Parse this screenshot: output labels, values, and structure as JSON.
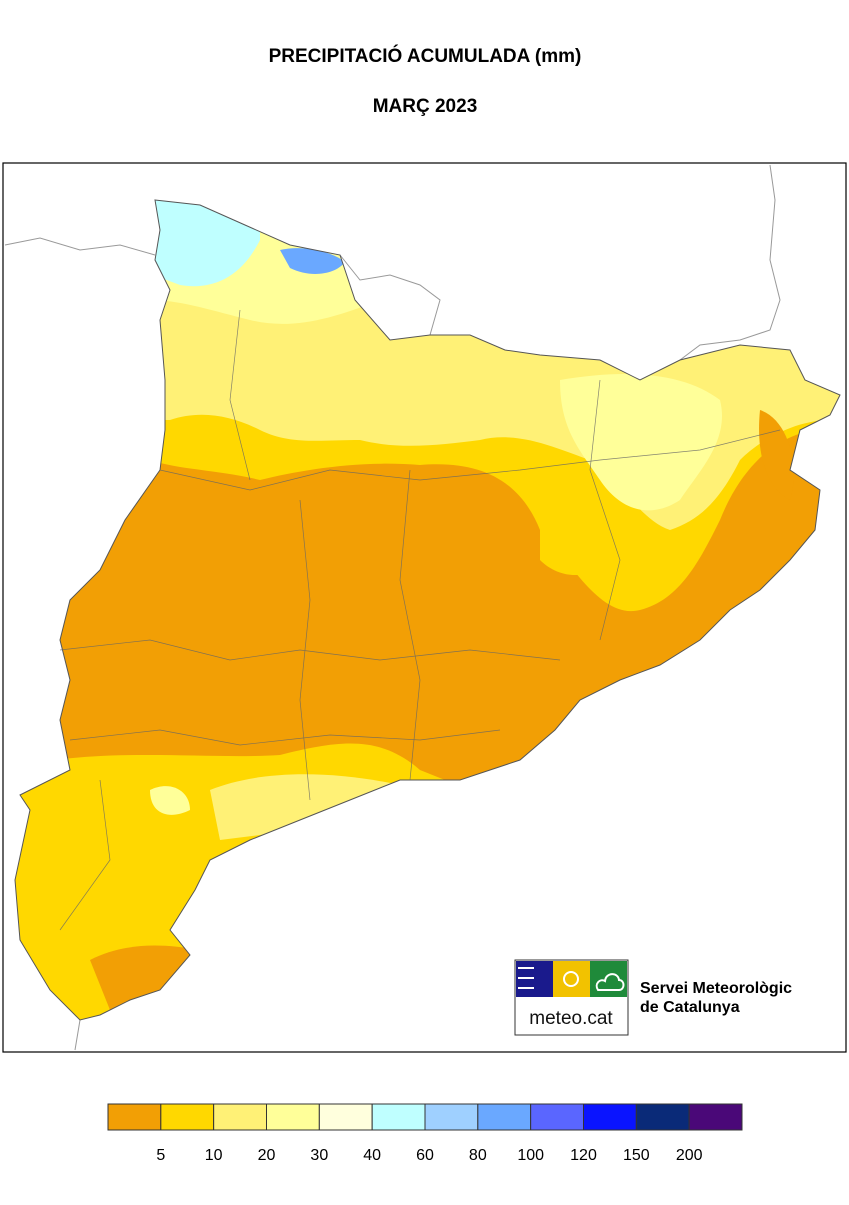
{
  "header": {
    "title": "PRECIPITACIÓ ACUMULADA (mm)",
    "subtitle": "MARÇ 2023"
  },
  "legend": {
    "colors": [
      "#f29f05",
      "#ffd800",
      "#fff176",
      "#ffff99",
      "#ffffdd",
      "#bfffff",
      "#9fd0ff",
      "#6aa8ff",
      "#5a66ff",
      "#0a14ff",
      "#0a2a78",
      "#4a0878"
    ],
    "ticks": [
      5,
      10,
      20,
      30,
      40,
      60,
      80,
      100,
      120,
      150,
      200
    ]
  },
  "logo": {
    "text": "meteo.cat",
    "org_line1": "Servei Meteorològic",
    "org_line2": "de Catalunya"
  }
}
